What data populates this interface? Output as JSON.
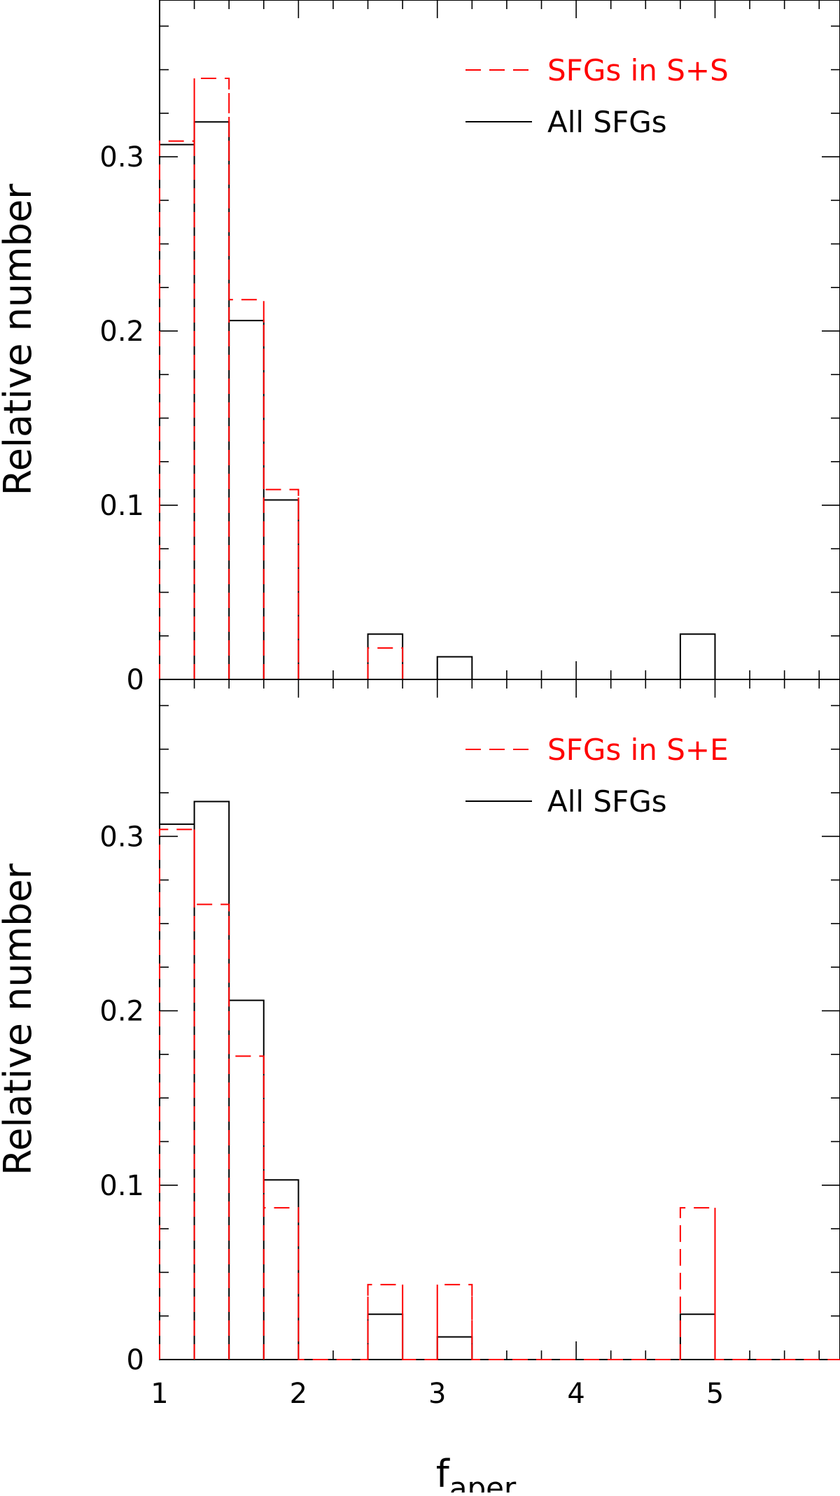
{
  "chart_data": [
    {
      "type": "histogram",
      "panel": "top",
      "bin_edges": [
        1.0,
        1.25,
        1.5,
        1.75,
        2.0,
        2.25,
        2.5,
        2.75,
        3.0,
        3.25,
        3.5,
        3.75,
        4.0,
        4.25,
        4.5,
        4.75,
        5.0,
        5.25,
        5.5,
        5.75,
        5.9
      ],
      "series": [
        {
          "name": "SFGs in S+S",
          "style": "dashed",
          "color": "#ff0000",
          "values": [
            0.309,
            0.345,
            0.218,
            0.109,
            0,
            0,
            0.018,
            0,
            0,
            0,
            0,
            0,
            0,
            0,
            0,
            0,
            0,
            0,
            0,
            0
          ]
        },
        {
          "name": "All SFGs",
          "style": "solid",
          "color": "#000000",
          "values": [
            0.307,
            0.32,
            0.206,
            0.103,
            0,
            0,
            0.026,
            0,
            0.013,
            0,
            0,
            0,
            0,
            0,
            0,
            0.026,
            0,
            0,
            0,
            0
          ]
        }
      ],
      "ylabel": "Relative number",
      "xlabel": "",
      "xlim": [
        1.0,
        5.9
      ],
      "ylim": [
        0,
        0.39
      ],
      "yticks": [
        0,
        0.1,
        0.2,
        0.3
      ],
      "ytick_labels": [
        "0",
        "0.1",
        "0.2",
        "0.3"
      ],
      "xticks": [
        1,
        2,
        3,
        4,
        5
      ],
      "xtick_labels": [],
      "legend_position": "top-right"
    },
    {
      "type": "histogram",
      "panel": "bottom",
      "bin_edges": [
        1.0,
        1.25,
        1.5,
        1.75,
        2.0,
        2.25,
        2.5,
        2.75,
        3.0,
        3.25,
        3.5,
        3.75,
        4.0,
        4.25,
        4.5,
        4.75,
        5.0,
        5.25,
        5.5,
        5.75,
        5.9
      ],
      "series": [
        {
          "name": "SFGs in S+E",
          "style": "dashed",
          "color": "#ff0000",
          "values": [
            0.304,
            0.261,
            0.174,
            0.087,
            0,
            0,
            0.043,
            0,
            0.043,
            0,
            0,
            0,
            0,
            0,
            0,
            0.087,
            0,
            0,
            0,
            0
          ]
        },
        {
          "name": "All SFGs",
          "style": "solid",
          "color": "#000000",
          "values": [
            0.307,
            0.32,
            0.206,
            0.103,
            0,
            0,
            0.026,
            0,
            0.013,
            0,
            0,
            0,
            0,
            0,
            0,
            0.026,
            0,
            0,
            0,
            0
          ]
        }
      ],
      "ylabel": "Relative number",
      "xlabel": "f_aper",
      "xlabel_main": "f",
      "xlabel_sub": "aper",
      "xlim": [
        1.0,
        5.9
      ],
      "ylim": [
        0,
        0.39
      ],
      "yticks": [
        0,
        0.1,
        0.2,
        0.3
      ],
      "ytick_labels": [
        "0",
        "0.1",
        "0.2",
        "0.3"
      ],
      "xticks": [
        1,
        2,
        3,
        4,
        5
      ],
      "xtick_labels": [
        "1",
        "2",
        "3",
        "4",
        "5"
      ],
      "legend_position": "top-right"
    }
  ]
}
